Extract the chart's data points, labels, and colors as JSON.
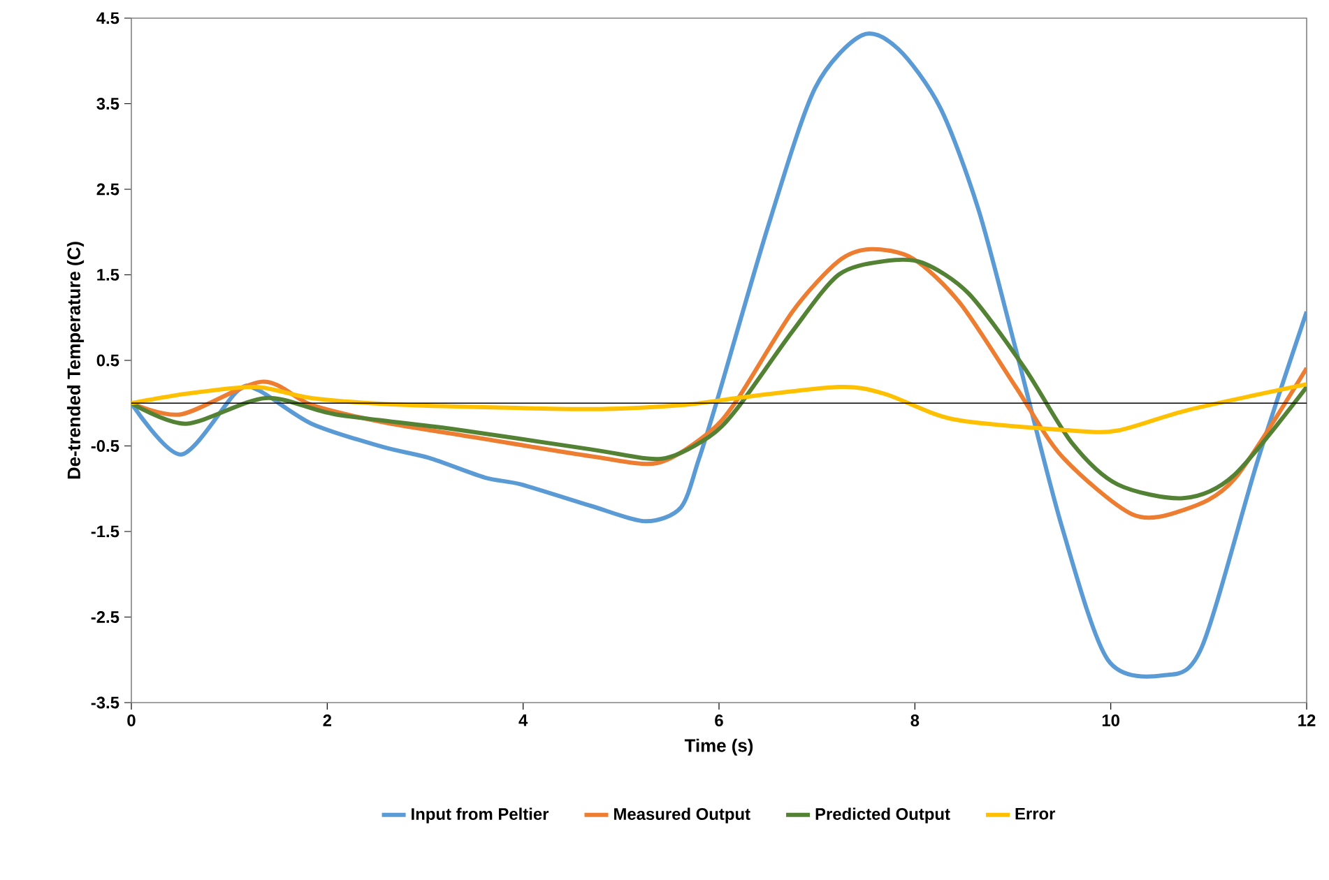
{
  "chart_data": {
    "type": "line",
    "xlabel": "Time (s)",
    "ylabel": "De-trended Temperature (C)",
    "xlim": [
      0,
      12
    ],
    "ylim": [
      -3.5,
      4.5
    ],
    "xticks": [
      0,
      2,
      4,
      6,
      8,
      10,
      12
    ],
    "yticks": [
      -3.5,
      -2.5,
      -1.5,
      -0.5,
      0.5,
      1.5,
      2.5,
      3.5,
      4.5
    ],
    "grid": false,
    "legend": "bottom",
    "marker": "none",
    "line_style": "solid",
    "ref_lines": [
      {
        "axis": "y",
        "value": 0,
        "color": "#000000"
      }
    ],
    "series": [
      {
        "name": "Input from Peltier",
        "color": "#5b9bd5",
        "x": [
          0,
          0.51,
          1.08,
          1.3,
          1.84,
          2.56,
          3.04,
          3.61,
          3.98,
          4.69,
          5.25,
          5.61,
          5.79,
          5.98,
          6.51,
          6.98,
          7.46,
          7.83,
          8.26,
          8.65,
          9.03,
          9.5,
          9.97,
          10.55,
          10.93,
          11.5,
          12
        ],
        "values": [
          0,
          -0.6,
          0.14,
          0.15,
          -0.24,
          -0.51,
          -0.64,
          -0.87,
          -0.95,
          -1.2,
          -1.38,
          -1.22,
          -0.67,
          0.03,
          2.1,
          3.68,
          4.3,
          4.14,
          3.45,
          2.26,
          0.63,
          -1.44,
          -3.0,
          -3.18,
          -2.85,
          -0.67,
          1.07
        ]
      },
      {
        "name": "Measured Output",
        "color": "#ed7d31",
        "x": [
          0,
          0.51,
          1.33,
          1.84,
          2.56,
          3.51,
          4.69,
          5.37,
          5.89,
          6.18,
          6.75,
          7.22,
          7.55,
          7.98,
          8.46,
          9.03,
          9.5,
          10.22,
          10.74,
          11.26,
          12
        ],
        "values": [
          0,
          -0.13,
          0.25,
          -0.02,
          -0.22,
          -0.4,
          -0.62,
          -0.7,
          -0.35,
          0.03,
          1.07,
          1.66,
          1.8,
          1.69,
          1.17,
          0.19,
          -0.62,
          -1.3,
          -1.25,
          -0.89,
          0.41
        ]
      },
      {
        "name": "Predicted Output",
        "color": "#548235",
        "x": [
          0,
          0.56,
          1.37,
          2.08,
          3.27,
          4.69,
          5.41,
          5.89,
          6.18,
          6.75,
          7.22,
          7.69,
          8.08,
          8.55,
          9.12,
          9.6,
          10.07,
          10.74,
          11.26,
          12
        ],
        "values": [
          0,
          -0.24,
          0.06,
          -0.13,
          -0.3,
          -0.54,
          -0.65,
          -0.4,
          -0.07,
          0.84,
          1.5,
          1.66,
          1.64,
          1.28,
          0.41,
          -0.46,
          -0.95,
          -1.11,
          -0.84,
          0.19
        ]
      },
      {
        "name": "Error",
        "color": "#ffc000",
        "x": [
          0,
          0.56,
          1.27,
          1.84,
          2.8,
          4.69,
          5.65,
          6.18,
          7.22,
          7.69,
          8.4,
          9.6,
          10.07,
          10.79,
          12
        ],
        "values": [
          0,
          0.11,
          0.19,
          0.06,
          -0.02,
          -0.07,
          -0.02,
          0.06,
          0.19,
          0.11,
          -0.19,
          -0.32,
          -0.32,
          -0.08,
          0.22
        ]
      }
    ]
  }
}
